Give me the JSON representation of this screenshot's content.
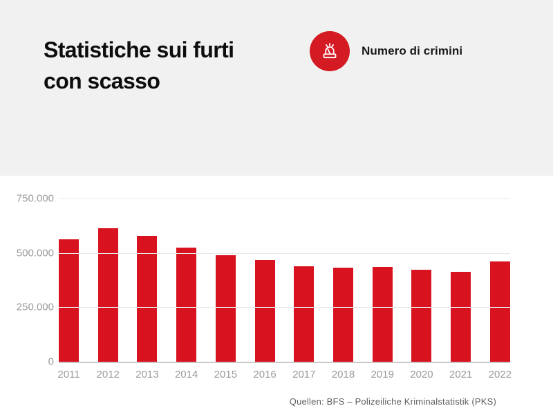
{
  "header": {
    "title_lines": [
      "Statistiche sui furti",
      "con scasso"
    ],
    "legend": {
      "icon": "siren-icon",
      "icon_color": "#d41a22",
      "label": "Numero di crimini"
    }
  },
  "chart_data": {
    "type": "bar",
    "title": "Statistiche sui furti con scasso",
    "series_name": "Numero di crimini",
    "categories": [
      "2011",
      "2012",
      "2013",
      "2014",
      "2015",
      "2016",
      "2017",
      "2018",
      "2019",
      "2020",
      "2021",
      "2022"
    ],
    "values": [
      561000,
      612000,
      577000,
      526000,
      491000,
      467000,
      438000,
      433000,
      435000,
      424000,
      414000,
      461000
    ],
    "bar_color": "#d9121f",
    "ylim": [
      0,
      750000
    ],
    "yticks": [
      {
        "value": 750000,
        "label": "750.000"
      },
      {
        "value": 500000,
        "label": "500.000"
      },
      {
        "value": 250000,
        "label": "250.000"
      },
      {
        "value": 0,
        "label": "0"
      }
    ],
    "grid": true,
    "legend_position": "top-right",
    "xlabel": "",
    "ylabel": ""
  },
  "footer": {
    "source": "Quellen: BFS – Polizeiliche Kriminalstatistik (PKS)"
  }
}
